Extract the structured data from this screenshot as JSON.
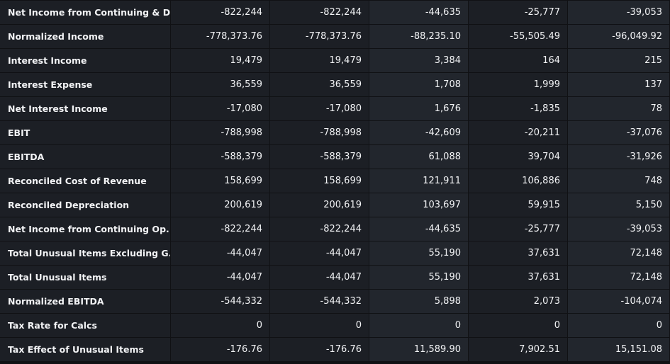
{
  "table": {
    "rows": [
      {
        "label": "Net Income from Continuing & D...",
        "values": [
          "-822,244",
          "-822,244",
          "-44,635",
          "-25,777",
          "-39,053"
        ]
      },
      {
        "label": "Normalized Income",
        "values": [
          "-778,373.76",
          "-778,373.76",
          "-88,235.10",
          "-55,505.49",
          "-96,049.92"
        ]
      },
      {
        "label": "Interest Income",
        "values": [
          "19,479",
          "19,479",
          "3,384",
          "164",
          "215"
        ]
      },
      {
        "label": "Interest Expense",
        "values": [
          "36,559",
          "36,559",
          "1,708",
          "1,999",
          "137"
        ]
      },
      {
        "label": "Net Interest Income",
        "values": [
          "-17,080",
          "-17,080",
          "1,676",
          "-1,835",
          "78"
        ]
      },
      {
        "label": "EBIT",
        "values": [
          "-788,998",
          "-788,998",
          "-42,609",
          "-20,211",
          "-37,076"
        ]
      },
      {
        "label": "EBITDA",
        "values": [
          "-588,379",
          "-588,379",
          "61,088",
          "39,704",
          "-31,926"
        ]
      },
      {
        "label": "Reconciled Cost of Revenue",
        "values": [
          "158,699",
          "158,699",
          "121,911",
          "106,886",
          "748"
        ]
      },
      {
        "label": "Reconciled Depreciation",
        "values": [
          "200,619",
          "200,619",
          "103,697",
          "59,915",
          "5,150"
        ]
      },
      {
        "label": "Net Income from Continuing Op...",
        "values": [
          "-822,244",
          "-822,244",
          "-44,635",
          "-25,777",
          "-39,053"
        ]
      },
      {
        "label": "Total Unusual Items Excluding G...",
        "values": [
          "-44,047",
          "-44,047",
          "55,190",
          "37,631",
          "72,148"
        ]
      },
      {
        "label": "Total Unusual Items",
        "values": [
          "-44,047",
          "-44,047",
          "55,190",
          "37,631",
          "72,148"
        ]
      },
      {
        "label": "Normalized EBITDA",
        "values": [
          "-544,332",
          "-544,332",
          "5,898",
          "2,073",
          "-104,074"
        ]
      },
      {
        "label": "Tax Rate for Calcs",
        "values": [
          "0",
          "0",
          "0",
          "0",
          "0"
        ]
      },
      {
        "label": "Tax Effect of Unusual Items",
        "values": [
          "-176.76",
          "-176.76",
          "11,589.90",
          "7,902.51",
          "15,151.08"
        ]
      }
    ]
  }
}
